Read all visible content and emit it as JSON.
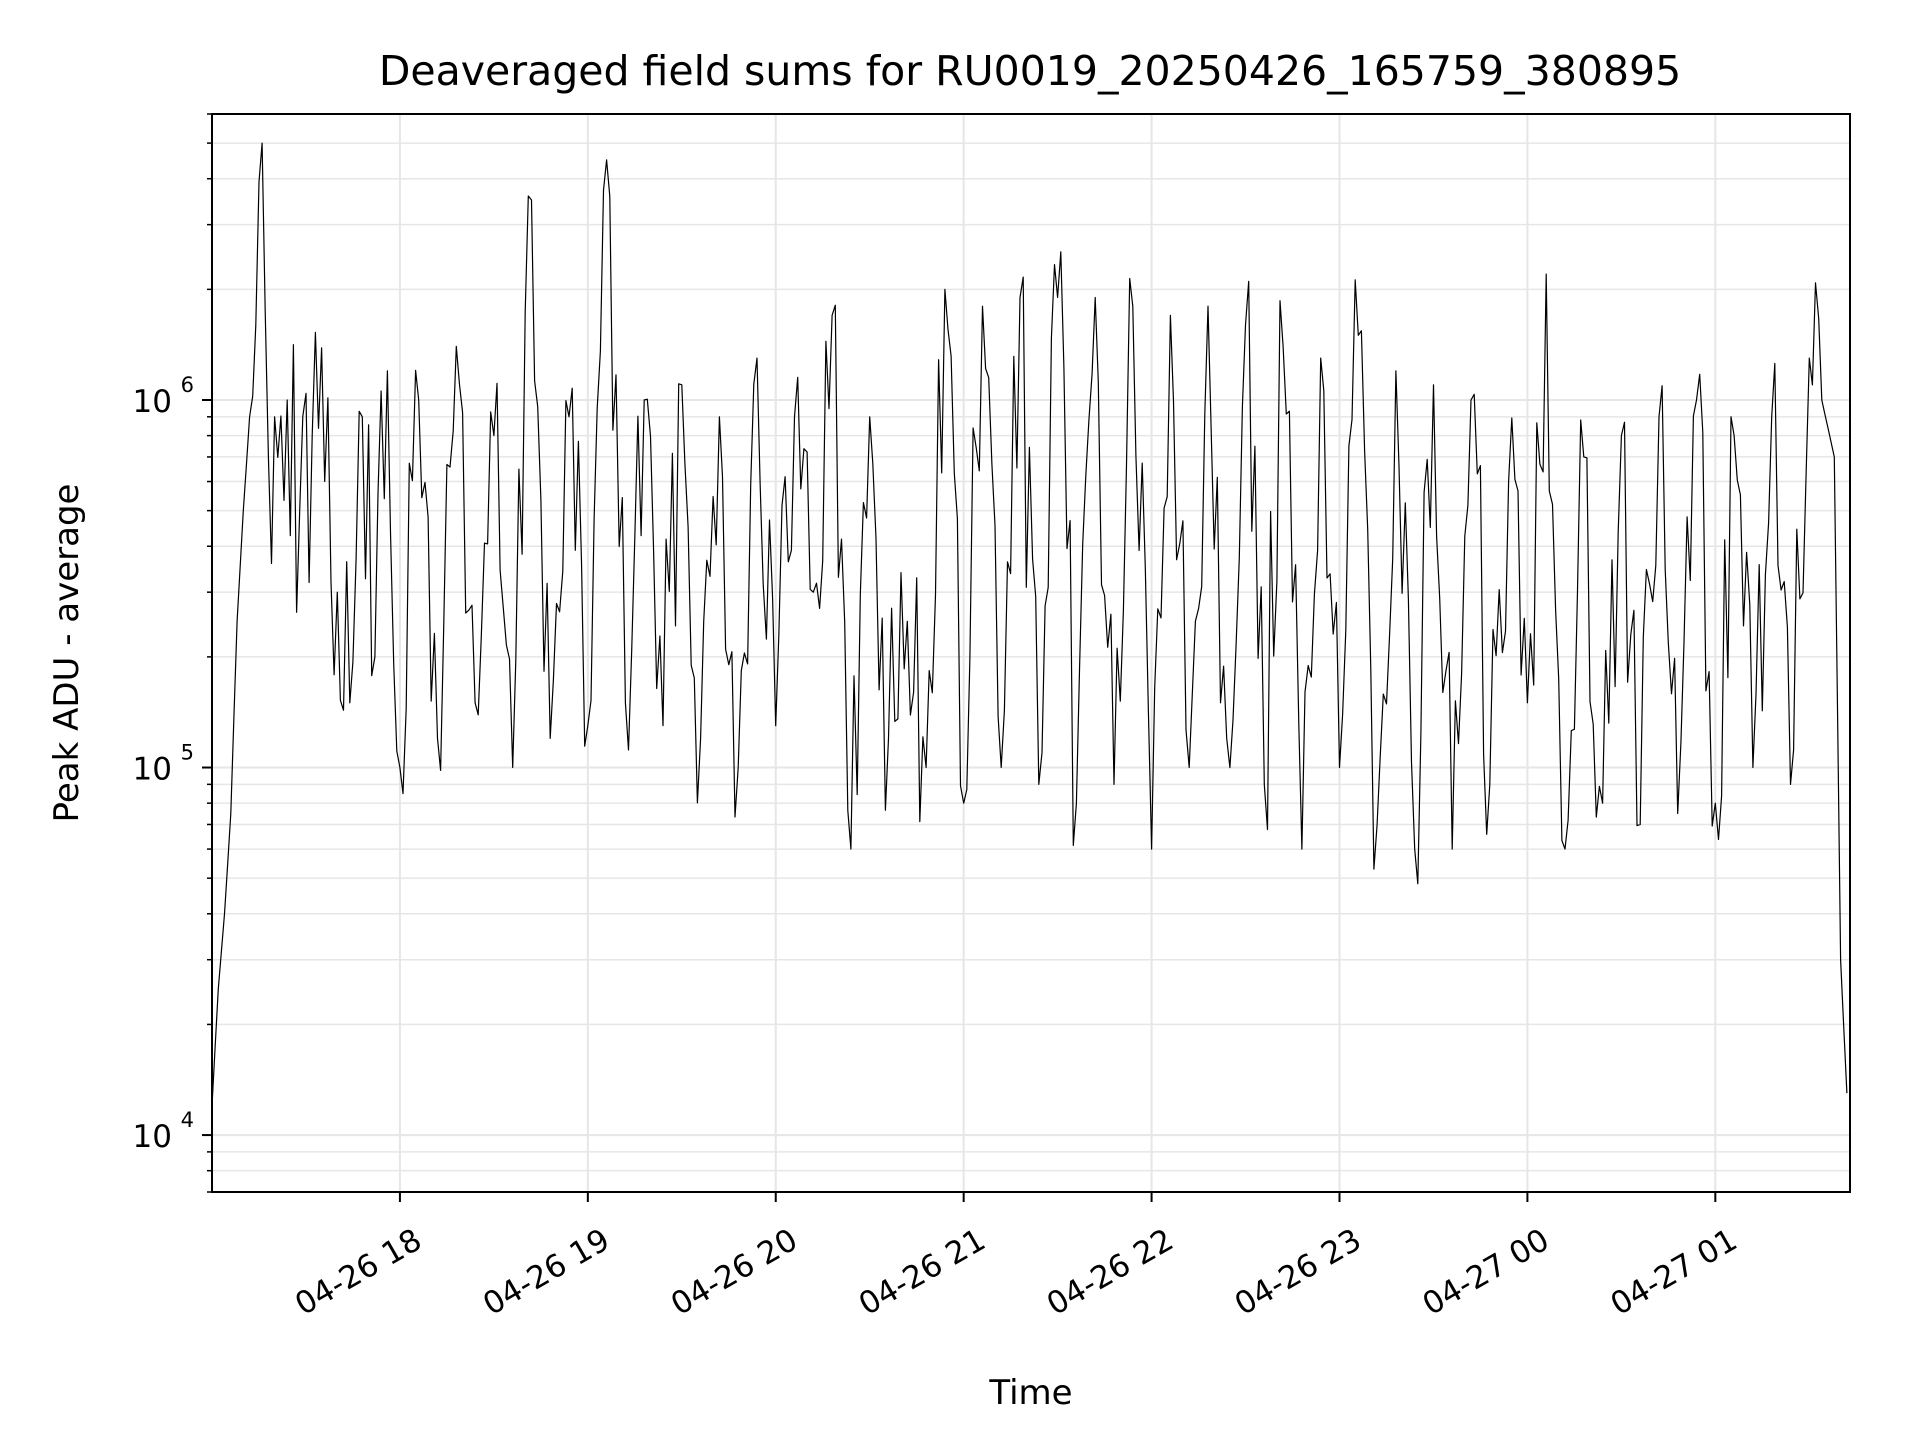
{
  "chart_data": {
    "type": "line",
    "title": "Deaveraged field sums for RU0019_20250426_165759_380895",
    "xlabel": "Time",
    "ylabel": "Peak ADU - average",
    "yscale": "log",
    "ylim": [
      7000,
      6000000
    ],
    "xlim": [
      "2025-04-26 17:00",
      "2025-04-27 01:43"
    ],
    "grid": true,
    "line_color": "#000000",
    "grid_color": "#e6e6e6",
    "x_ticks": [
      {
        "value": "2025-04-26 18:00",
        "label": "04-26 18"
      },
      {
        "value": "2025-04-26 19:00",
        "label": "04-26 19"
      },
      {
        "value": "2025-04-26 20:00",
        "label": "04-26 20"
      },
      {
        "value": "2025-04-26 21:00",
        "label": "04-26 21"
      },
      {
        "value": "2025-04-26 22:00",
        "label": "04-26 22"
      },
      {
        "value": "2025-04-26 23:00",
        "label": "04-26 23"
      },
      {
        "value": "2025-04-27 00:00",
        "label": "04-27 00"
      },
      {
        "value": "2025-04-27 01:00",
        "label": "04-27 01"
      }
    ],
    "y_ticks": [
      {
        "value": 10000,
        "base": "10",
        "exp": "4"
      },
      {
        "value": 100000,
        "base": "10",
        "exp": "5"
      },
      {
        "value": 1000000,
        "base": "10",
        "exp": "6"
      }
    ],
    "series": [
      {
        "x": [
          "2025-04-26 17:00",
          "2025-04-26 17:02",
          "2025-04-26 17:04",
          "2025-04-26 17:06",
          "2025-04-26 17:08",
          "2025-04-26 17:10",
          "2025-04-26 17:12",
          "2025-04-26 17:14",
          "2025-04-26 17:16",
          "2025-04-26 17:18",
          "2025-04-26 17:20",
          "2025-04-26 17:24",
          "2025-04-26 17:28",
          "2025-04-26 17:32",
          "2025-04-26 17:36",
          "2025-04-26 17:40",
          "2025-04-26 17:44",
          "2025-04-26 17:48",
          "2025-04-26 17:52",
          "2025-04-26 17:56",
          "2025-04-26 18:00",
          "2025-04-26 18:06",
          "2025-04-26 18:12",
          "2025-04-26 18:18",
          "2025-04-26 18:24",
          "2025-04-26 18:30",
          "2025-04-26 18:36",
          "2025-04-26 18:42",
          "2025-04-26 18:48",
          "2025-04-26 18:54",
          "2025-04-26 19:00",
          "2025-04-26 19:06",
          "2025-04-26 19:12",
          "2025-04-26 19:18",
          "2025-04-26 19:24",
          "2025-04-26 19:30",
          "2025-04-26 19:36",
          "2025-04-26 19:42",
          "2025-04-26 19:48",
          "2025-04-26 19:54",
          "2025-04-26 20:00",
          "2025-04-26 20:06",
          "2025-04-26 20:12",
          "2025-04-26 20:18",
          "2025-04-26 20:24",
          "2025-04-26 20:30",
          "2025-04-26 20:36",
          "2025-04-26 20:42",
          "2025-04-26 20:48",
          "2025-04-26 20:54",
          "2025-04-26 21:00",
          "2025-04-26 21:06",
          "2025-04-26 21:12",
          "2025-04-26 21:18",
          "2025-04-26 21:24",
          "2025-04-26 21:30",
          "2025-04-26 21:36",
          "2025-04-26 21:42",
          "2025-04-26 21:48",
          "2025-04-26 21:54",
          "2025-04-26 22:00",
          "2025-04-26 22:06",
          "2025-04-26 22:12",
          "2025-04-26 22:18",
          "2025-04-26 22:24",
          "2025-04-26 22:30",
          "2025-04-26 22:36",
          "2025-04-26 22:42",
          "2025-04-26 22:48",
          "2025-04-26 22:54",
          "2025-04-26 23:00",
          "2025-04-26 23:06",
          "2025-04-26 23:12",
          "2025-04-26 23:18",
          "2025-04-26 23:24",
          "2025-04-26 23:30",
          "2025-04-26 23:36",
          "2025-04-26 23:42",
          "2025-04-26 23:48",
          "2025-04-26 23:54",
          "2025-04-27 00:00",
          "2025-04-27 00:06",
          "2025-04-27 00:12",
          "2025-04-27 00:18",
          "2025-04-27 00:24",
          "2025-04-27 00:30",
          "2025-04-27 00:36",
          "2025-04-27 00:42",
          "2025-04-27 00:48",
          "2025-04-27 00:54",
          "2025-04-27 01:00",
          "2025-04-27 01:06",
          "2025-04-27 01:12",
          "2025-04-27 01:18",
          "2025-04-27 01:24",
          "2025-04-27 01:30",
          "2025-04-27 01:34",
          "2025-04-27 01:38",
          "2025-04-27 01:40",
          "2025-04-27 01:42"
        ],
        "y": [
          12000,
          25000,
          40000,
          75000,
          250000,
          500000,
          900000,
          1600000,
          5000000,
          700000,
          900000,
          1000000,
          500000,
          800000,
          600000,
          300000,
          150000,
          900000,
          200000,
          1200000,
          100000,
          1000000,
          120000,
          1400000,
          150000,
          800000,
          100000,
          3500000,
          120000,
          900000,
          130000,
          4500000,
          150000,
          1000000,
          130000,
          1100000,
          120000,
          900000,
          100000,
          1300000,
          130000,
          900000,
          300000,
          1700000,
          60000,
          900000,
          120000,
          250000,
          100000,
          2000000,
          80000,
          1800000,
          100000,
          1900000,
          90000,
          1900000,
          80000,
          1900000,
          90000,
          1800000,
          60000,
          1700000,
          100000,
          1800000,
          120000,
          1600000,
          90000,
          1400000,
          60000,
          1300000,
          100000,
          1500000,
          70000,
          1200000,
          60000,
          1100000,
          60000,
          1000000,
          90000,
          600000,
          150000,
          2200000,
          60000,
          700000,
          80000,
          800000,
          70000,
          900000,
          75000,
          1000000,
          80000,
          800000,
          100000,
          900000,
          90000,
          1300000,
          1000000,
          700000,
          30000,
          13000
        ]
      }
    ]
  }
}
